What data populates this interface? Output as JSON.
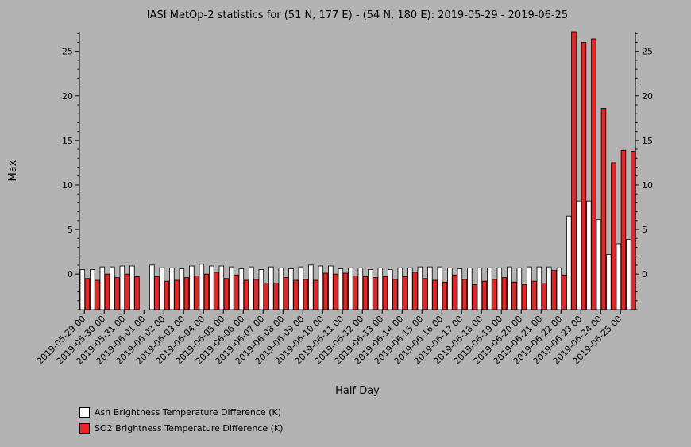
{
  "chart_data": {
    "type": "bar",
    "title": "IASI MetOp-2 statistics for (51 N, 177 E) - (54 N, 180 E): 2019-05-29 - 2019-06-25",
    "xlabel": "Half Day",
    "ylabel": "Max",
    "ylim": [
      -4,
      27.2
    ],
    "yticks": [
      0,
      5,
      10,
      15,
      20,
      25
    ],
    "grid": false,
    "legend_position": "bottom-left",
    "categories": [
      "2019-05-29 00",
      "2019-05-29 12",
      "2019-05-30 00",
      "2019-05-30 12",
      "2019-05-31 00",
      "2019-05-31 12",
      "2019-06-01 00",
      "2019-06-01 12",
      "2019-06-02 00",
      "2019-06-02 12",
      "2019-06-03 00",
      "2019-06-03 12",
      "2019-06-04 00",
      "2019-06-04 12",
      "2019-06-05 00",
      "2019-06-05 12",
      "2019-06-06 00",
      "2019-06-06 12",
      "2019-06-07 00",
      "2019-06-07 12",
      "2019-06-08 00",
      "2019-06-08 12",
      "2019-06-09 00",
      "2019-06-09 12",
      "2019-06-10 00",
      "2019-06-10 12",
      "2019-06-11 00",
      "2019-06-11 12",
      "2019-06-12 00",
      "2019-06-12 12",
      "2019-06-13 00",
      "2019-06-13 12",
      "2019-06-14 00",
      "2019-06-14 12",
      "2019-06-15 00",
      "2019-06-15 12",
      "2019-06-16 00",
      "2019-06-16 12",
      "2019-06-17 00",
      "2019-06-17 12",
      "2019-06-18 00",
      "2019-06-18 12",
      "2019-06-19 00",
      "2019-06-19 12",
      "2019-06-20 00",
      "2019-06-20 12",
      "2019-06-21 00",
      "2019-06-21 12",
      "2019-06-22 00",
      "2019-06-22 12",
      "2019-06-23 00",
      "2019-06-23 12",
      "2019-06-24 00",
      "2019-06-24 12",
      "2019-06-25 00",
      "2019-06-25 12"
    ],
    "tick_labels": [
      "2019-05-29 00",
      "2019-05-30 00",
      "2019-05-31 00",
      "2019-06-01 00",
      "2019-06-02 00",
      "2019-06-03 00",
      "2019-06-04 00",
      "2019-06-05 00",
      "2019-06-06 00",
      "2019-06-07 00",
      "2019-06-08 00",
      "2019-06-09 00",
      "2019-06-10 00",
      "2019-06-11 00",
      "2019-06-12 00",
      "2019-06-13 00",
      "2019-06-14 00",
      "2019-06-15 00",
      "2019-06-16 00",
      "2019-06-17 00",
      "2019-06-18 00",
      "2019-06-19 00",
      "2019-06-20 00",
      "2019-06-21 00",
      "2019-06-22 00",
      "2019-06-23 00",
      "2019-06-24 00",
      "2019-06-25 00"
    ],
    "series": [
      {
        "name": "Ash Brightness Temperature Difference (K)",
        "color": "#ffffff",
        "values": [
          0.5,
          0.5,
          0.8,
          0.8,
          0.9,
          0.9,
          null,
          1.0,
          0.7,
          0.7,
          0.6,
          0.9,
          1.1,
          0.9,
          0.9,
          0.8,
          0.6,
          0.8,
          0.5,
          0.8,
          0.7,
          0.6,
          0.8,
          1.0,
          0.9,
          0.9,
          0.6,
          0.7,
          0.7,
          0.5,
          0.7,
          0.5,
          0.7,
          0.7,
          0.8,
          0.8,
          0.8,
          0.7,
          0.6,
          0.7,
          0.7,
          0.7,
          0.7,
          0.8,
          0.7,
          0.8,
          0.8,
          0.8,
          0.7,
          6.5,
          8.2,
          8.2,
          6.1,
          2.2,
          3.4,
          3.9
        ]
      },
      {
        "name": "SO2 Brightness Temperature Difference (K)",
        "color": "#ee2222",
        "values": [
          -0.5,
          -0.7,
          0.0,
          -0.4,
          0.0,
          -0.3,
          null,
          -0.3,
          -0.8,
          -0.7,
          -0.4,
          -0.2,
          0.0,
          0.2,
          -0.5,
          -0.1,
          -0.7,
          -0.6,
          -1.0,
          -1.0,
          -0.4,
          -0.7,
          -0.6,
          -0.7,
          0.1,
          0.0,
          0.1,
          -0.2,
          -0.3,
          -0.4,
          -0.3,
          -0.6,
          -0.3,
          0.2,
          -0.5,
          -0.7,
          -0.9,
          -0.1,
          -0.6,
          -1.2,
          -0.8,
          -0.6,
          -0.4,
          -0.9,
          -1.2,
          -0.8,
          -1.0,
          0.4,
          -0.1,
          27.2,
          26.0,
          26.4,
          18.6,
          12.5,
          13.9,
          13.8
        ]
      }
    ]
  }
}
